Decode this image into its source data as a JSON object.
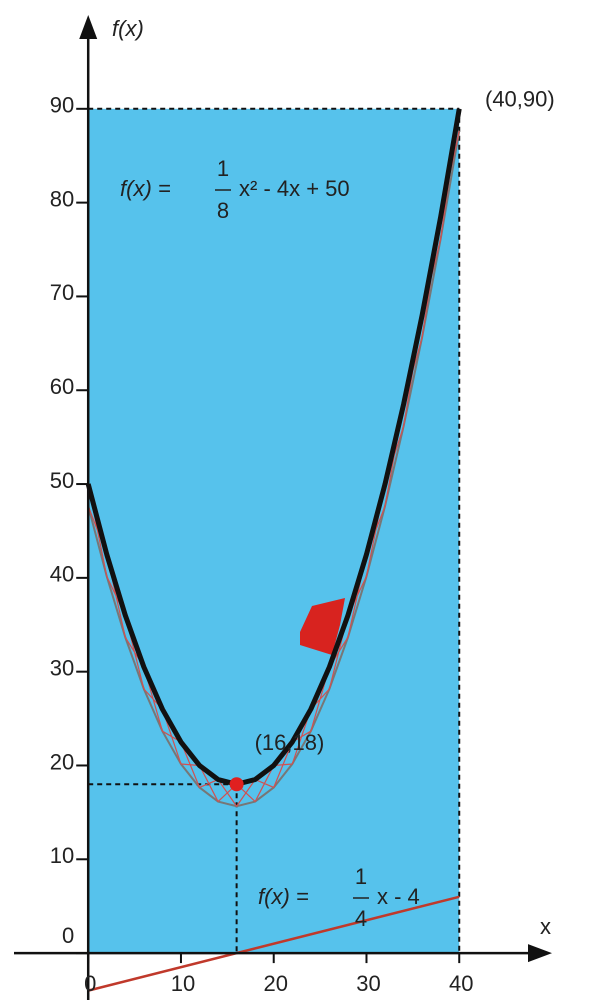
{
  "chart_data": {
    "type": "line",
    "y_label": "f(x)",
    "x_label": "x",
    "xlim": [
      -8,
      50
    ],
    "ylim": [
      -5,
      100
    ],
    "xticks": [
      0,
      10,
      20,
      30,
      40
    ],
    "yticks": [
      0,
      10,
      20,
      30,
      40,
      50,
      60,
      70,
      80,
      90
    ],
    "series": [
      {
        "color": "#111111",
        "x": [
          0,
          2,
          4,
          6,
          8,
          10,
          12,
          14,
          16,
          18,
          20,
          22,
          24,
          26,
          28,
          30,
          32,
          34,
          36,
          38,
          40
        ],
        "values": [
          50,
          42.5,
          36,
          30.5,
          26,
          22.5,
          20,
          18.5,
          18,
          18.5,
          20,
          22.5,
          26,
          30.5,
          36,
          42.5,
          50,
          58.5,
          68,
          78.5,
          90
        ]
      },
      {
        "color": "#c0392b",
        "x": [
          0,
          40
        ],
        "values": [
          -4,
          6
        ]
      }
    ],
    "points": [
      {
        "x": 40,
        "y": 90,
        "label": "(40,90)"
      },
      {
        "x": 16,
        "y": 18,
        "label": "(16,18)"
      }
    ],
    "formulas": [
      {
        "lhs": "f(x) =",
        "num": "1",
        "den": "8",
        "rhs": "x² - 4x + 50"
      },
      {
        "lhs": "f(x) =",
        "num": "1",
        "den": "4",
        "rhs": "x - 4"
      }
    ]
  }
}
